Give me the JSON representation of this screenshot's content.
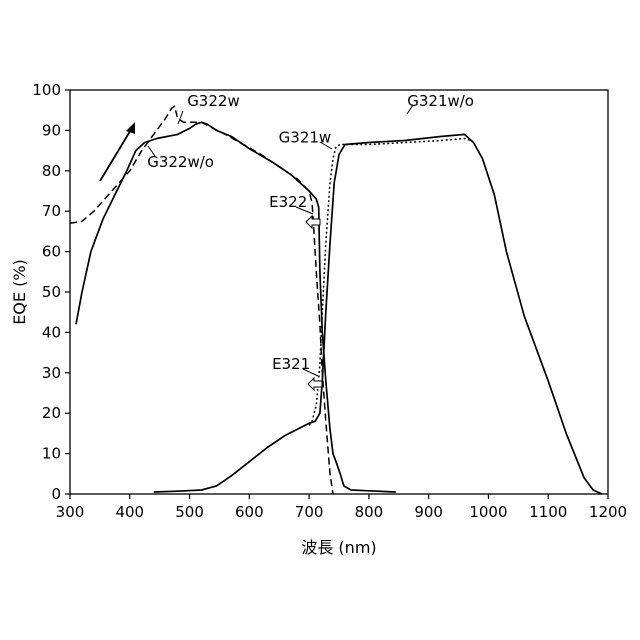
{
  "chart_data": {
    "type": "line",
    "title": "",
    "xlabel": "波長 (nm)",
    "ylabel": "EQE (%)",
    "xlim": [
      300,
      1200
    ],
    "ylim": [
      0,
      100
    ],
    "grid": false,
    "legend": "none",
    "x_ticks": [
      "300",
      "400",
      "500",
      "600",
      "700",
      "800",
      "900",
      "1000",
      "1100",
      "1200"
    ],
    "y_ticks": [
      "0",
      "10",
      "20",
      "30",
      "40",
      "50",
      "60",
      "70",
      "80",
      "90",
      "100"
    ],
    "series": [
      {
        "name": "G322w/o",
        "style": "solid",
        "points": [
          [
            310,
            42
          ],
          [
            320,
            50
          ],
          [
            335,
            60
          ],
          [
            355,
            68
          ],
          [
            375,
            74
          ],
          [
            395,
            80
          ],
          [
            410,
            85
          ],
          [
            425,
            87
          ],
          [
            445,
            88
          ],
          [
            480,
            89
          ],
          [
            500,
            90.5
          ],
          [
            510,
            91.5
          ],
          [
            520,
            92
          ],
          [
            530,
            91.5
          ],
          [
            545,
            90
          ],
          [
            570,
            88.5
          ],
          [
            600,
            85.5
          ],
          [
            640,
            82
          ],
          [
            670,
            79
          ],
          [
            700,
            75
          ],
          [
            712,
            73
          ],
          [
            716,
            71
          ],
          [
            718,
            55
          ],
          [
            722,
            40
          ],
          [
            728,
            28
          ],
          [
            735,
            16
          ],
          [
            740,
            10
          ],
          [
            745,
            8
          ],
          [
            752,
            5
          ],
          [
            758,
            2
          ],
          [
            770,
            1
          ],
          [
            800,
            0.8
          ],
          [
            845,
            0.5
          ]
        ]
      },
      {
        "name": "G322w",
        "style": "dashed",
        "points": [
          [
            300,
            67
          ],
          [
            320,
            67.5
          ],
          [
            340,
            70
          ],
          [
            370,
            75
          ],
          [
            400,
            80
          ],
          [
            420,
            85
          ],
          [
            440,
            89
          ],
          [
            460,
            93
          ],
          [
            470,
            95.5
          ],
          [
            475,
            96
          ],
          [
            480,
            93
          ],
          [
            490,
            92
          ],
          [
            520,
            92
          ],
          [
            560,
            89
          ],
          [
            620,
            84
          ],
          [
            680,
            78
          ],
          [
            700,
            75
          ],
          [
            705,
            72
          ],
          [
            708,
            65
          ],
          [
            712,
            55
          ],
          [
            718,
            42
          ],
          [
            722,
            30
          ],
          [
            728,
            18
          ],
          [
            735,
            5
          ],
          [
            740,
            0
          ]
        ]
      },
      {
        "name": "G321w/o",
        "style": "solid",
        "points": [
          [
            440,
            0.5
          ],
          [
            480,
            0.7
          ],
          [
            520,
            1
          ],
          [
            545,
            2
          ],
          [
            570,
            4.5
          ],
          [
            600,
            8
          ],
          [
            630,
            11.5
          ],
          [
            660,
            14.5
          ],
          [
            680,
            16
          ],
          [
            700,
            17.5
          ],
          [
            710,
            18
          ],
          [
            718,
            20
          ],
          [
            722,
            28
          ],
          [
            728,
            45
          ],
          [
            735,
            62
          ],
          [
            742,
            77
          ],
          [
            750,
            84
          ],
          [
            760,
            86.5
          ],
          [
            800,
            87
          ],
          [
            860,
            87.5
          ],
          [
            920,
            88.5
          ],
          [
            960,
            89
          ],
          [
            975,
            87
          ],
          [
            990,
            83
          ],
          [
            1010,
            74
          ],
          [
            1030,
            60
          ],
          [
            1060,
            44
          ],
          [
            1100,
            28
          ],
          [
            1130,
            15
          ],
          [
            1160,
            4
          ],
          [
            1175,
            1
          ],
          [
            1190,
            0
          ]
        ]
      },
      {
        "name": "G321w",
        "style": "dotted",
        "points": [
          [
            700,
            17
          ],
          [
            705,
            18
          ],
          [
            712,
            22
          ],
          [
            718,
            32
          ],
          [
            722,
            45
          ],
          [
            728,
            62
          ],
          [
            735,
            77
          ],
          [
            740,
            83
          ],
          [
            745,
            86
          ],
          [
            752,
            86.5
          ],
          [
            800,
            86.5
          ],
          [
            860,
            87
          ],
          [
            920,
            87.5
          ],
          [
            960,
            88
          ],
          [
            970,
            87.5
          ]
        ]
      }
    ],
    "annotations": [
      {
        "text": "G322w",
        "x": 540,
        "y": 96
      },
      {
        "text": "G322w/o",
        "x": 485,
        "y": 81
      },
      {
        "text": "G321w",
        "x": 693,
        "y": 87
      },
      {
        "text": "G321w/o",
        "x": 920,
        "y": 96
      },
      {
        "text": "E322",
        "x": 665,
        "y": 71
      },
      {
        "text": "E321",
        "x": 670,
        "y": 31
      }
    ]
  }
}
